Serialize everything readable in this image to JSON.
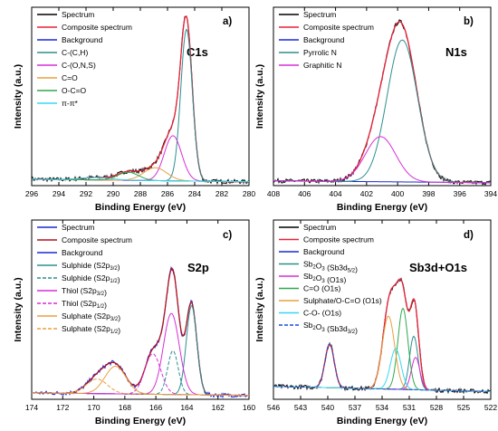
{
  "figure": {
    "panels": [
      {
        "letter": "a)",
        "element": "C1s",
        "xlabel": "Binding Energy (eV)",
        "ylabel": "Intensity (a.u.)"
      },
      {
        "letter": "b)",
        "element": "N1s",
        "xlabel": "Binding Energy (eV)",
        "ylabel": "Intensity (a.u.)"
      },
      {
        "letter": "c)",
        "element": "S2p",
        "xlabel": "Binding Energy (eV)",
        "ylabel": "Intensity (a.u.)"
      },
      {
        "letter": "d)",
        "element": "Sb3d+O1s",
        "xlabel": "Binding Energy (eV)",
        "ylabel": "Intensity (a.u.)"
      }
    ]
  },
  "chart_data": [
    {
      "type": "line",
      "title": "C1s",
      "panel_label": "a)",
      "xlabel": "Binding Energy (eV)",
      "ylabel": "Intensity (a.u.)",
      "xlim": [
        296,
        280
      ],
      "x_ticks": [
        296,
        294,
        292,
        290,
        288,
        286,
        284,
        282,
        280
      ],
      "ylim": [
        0,
        1.05
      ],
      "y_ticks_shown": false,
      "legend_position": "top-left",
      "components": [
        {
          "name": "Spectrum",
          "color": "#000000",
          "dash": "solid",
          "kind": "spectrum"
        },
        {
          "name": "Composite spectrum",
          "color": "#e8233a",
          "dash": "solid",
          "kind": "composite"
        },
        {
          "name": "Background",
          "color": "#1a2ad6",
          "dash": "solid",
          "kind": "background"
        },
        {
          "name": "C-(C,H)",
          "color": "#2e8f8f",
          "dash": "solid",
          "center": 284.6,
          "fwhm": 1.0,
          "height": 0.94
        },
        {
          "name": "C-(O,N,S)",
          "color": "#d62fd6",
          "dash": "solid",
          "center": 285.6,
          "fwhm": 1.5,
          "height": 0.28
        },
        {
          "name": "C=O",
          "color": "#e8a040",
          "dash": "solid",
          "center": 286.9,
          "fwhm": 2.0,
          "height": 0.08
        },
        {
          "name": "O-C=O",
          "color": "#2ea84f",
          "dash": "solid",
          "center": 288.9,
          "fwhm": 1.8,
          "height": 0.05
        },
        {
          "name": "π-π*",
          "color": "#38d8f0",
          "dash": "solid",
          "center": 291.2,
          "fwhm": 2.6,
          "height": 0.015
        }
      ],
      "background_level": 0.04
    },
    {
      "type": "line",
      "title": "N1s",
      "panel_label": "b)",
      "xlabel": "Binding Energy (eV)",
      "ylabel": "Intensity (a.u.)",
      "xlim": [
        408,
        394
      ],
      "x_ticks": [
        408,
        406,
        404,
        402,
        400,
        398,
        396,
        394
      ],
      "ylim": [
        0,
        1.05
      ],
      "y_ticks_shown": false,
      "legend_position": "top-left",
      "components": [
        {
          "name": "Spectrum",
          "color": "#000000",
          "dash": "solid",
          "kind": "spectrum"
        },
        {
          "name": "Composite spectrum",
          "color": "#e8233a",
          "dash": "solid",
          "kind": "composite"
        },
        {
          "name": "Background",
          "color": "#1a2ad6",
          "dash": "solid",
          "kind": "background"
        },
        {
          "name": "Pyrrolic N",
          "color": "#2e8f8f",
          "dash": "solid",
          "center": 399.7,
          "fwhm": 2.3,
          "height": 0.88
        },
        {
          "name": "Graphitic N",
          "color": "#d62fd6",
          "dash": "solid",
          "center": 401.1,
          "fwhm": 2.3,
          "height": 0.28
        }
      ],
      "background_level": 0.03
    },
    {
      "type": "line",
      "title": "S2p",
      "panel_label": "c)",
      "xlabel": "Binding Energy (eV)",
      "ylabel": "Intensity (a.u.)",
      "xlim": [
        174,
        160
      ],
      "x_ticks": [
        174,
        172,
        170,
        168,
        166,
        164,
        162,
        160
      ],
      "ylim": [
        0,
        1.05
      ],
      "y_ticks_shown": false,
      "legend_position": "top-left",
      "components": [
        {
          "name": "Spectrum",
          "color": "#1a2ad6",
          "dash": "solid",
          "kind": "spectrum"
        },
        {
          "name": "Composite spectrum",
          "color": "#b0121f",
          "dash": "solid",
          "kind": "composite"
        },
        {
          "name": "Background",
          "color": "#1a2ad6",
          "dash": "solid",
          "kind": "background"
        },
        {
          "name": "Sulphide (S2p3/2)",
          "color": "#2e8f8f",
          "dash": "solid",
          "center": 163.7,
          "fwhm": 0.8,
          "height": 0.55
        },
        {
          "name": "Sulphide (S2p1/2)",
          "color": "#2e8f8f",
          "dash": "dash",
          "center": 164.9,
          "fwhm": 0.8,
          "height": 0.27
        },
        {
          "name": "Thiol (S2p3/2)",
          "color": "#d62fd6",
          "dash": "solid",
          "center": 165.0,
          "fwhm": 1.2,
          "height": 0.5
        },
        {
          "name": "Thiol (S2p1/2)",
          "color": "#d62fd6",
          "dash": "dash",
          "center": 166.2,
          "fwhm": 1.2,
          "height": 0.25
        },
        {
          "name": "Sulphate (S2p3/2)",
          "color": "#e8a040",
          "dash": "solid",
          "center": 168.6,
          "fwhm": 1.6,
          "height": 0.17
        },
        {
          "name": "Sulphate (S2p1/2)",
          "color": "#e8a040",
          "dash": "dash",
          "center": 169.8,
          "fwhm": 1.6,
          "height": 0.09
        }
      ],
      "background_level": 0.04
    },
    {
      "type": "line",
      "title": "Sb3d+O1s",
      "panel_label": "d)",
      "xlabel": "Binding Energy (eV)",
      "ylabel": "Intensity (a.u.)",
      "xlim": [
        546,
        522
      ],
      "x_ticks": [
        546,
        543,
        540,
        537,
        534,
        531,
        528,
        525,
        522
      ],
      "ylim": [
        0,
        1.05
      ],
      "y_ticks_shown": false,
      "legend_position": "top-left",
      "components": [
        {
          "name": "Spectrum",
          "color": "#000000",
          "dash": "solid",
          "kind": "spectrum"
        },
        {
          "name": "Composite spectrum",
          "color": "#e8233a",
          "dash": "solid",
          "kind": "composite"
        },
        {
          "name": "Background",
          "color": "#1a2ad6",
          "dash": "solid",
          "kind": "background"
        },
        {
          "name": "Sb2O3 (Sb3d5/2)",
          "color": "#2e8f8f",
          "dash": "solid",
          "center": 530.5,
          "fwhm": 1.1,
          "height": 0.33
        },
        {
          "name": "Sb2O3 (O1s)",
          "color": "#d62fd6",
          "dash": "solid",
          "center": 530.3,
          "fwhm": 1.1,
          "height": 0.2
        },
        {
          "name": "C=O (O1s)",
          "color": "#2ea84f",
          "dash": "solid",
          "center": 531.7,
          "fwhm": 1.3,
          "height": 0.5
        },
        {
          "name": "Sulphate/O-C=O (O1s)",
          "color": "#e8a040",
          "dash": "solid",
          "center": 533.3,
          "fwhm": 1.6,
          "height": 0.45
        },
        {
          "name": "C-O- (O1s)",
          "color": "#38d8f0",
          "dash": "solid",
          "center": 532.5,
          "fwhm": 1.4,
          "height": 0.25
        },
        {
          "name": "Sb2O3 (Sb3d3/2)",
          "color": "#1a4fd6",
          "dash": "dash",
          "center": 539.8,
          "fwhm": 1.2,
          "height": 0.27
        }
      ],
      "background_level": 0.08
    }
  ],
  "legend_labels": [
    [
      {
        "base": "Spectrum"
      },
      {
        "base": "Composite spectrum"
      },
      {
        "base": "Background"
      },
      {
        "base": "C-(C,H)"
      },
      {
        "base": "C-(O,N,S)"
      },
      {
        "base": "C=O"
      },
      {
        "base": "O-C=O"
      },
      {
        "base": "π-π*"
      }
    ],
    [
      {
        "base": "Spectrum"
      },
      {
        "base": "Composite spectrum"
      },
      {
        "base": "Background"
      },
      {
        "base": "Pyrrolic N"
      },
      {
        "base": "Graphitic N"
      }
    ],
    [
      {
        "base": "Spectrum"
      },
      {
        "base": "Composite spectrum"
      },
      {
        "base": "Background"
      },
      {
        "base": "Sulphide (S2p",
        "sub": "3/2",
        "tail": ")"
      },
      {
        "base": "Sulphide (S2p",
        "sub": "1/2",
        "tail": ")"
      },
      {
        "base": "Thiol (S2p",
        "sub": "3/2",
        "tail": ")"
      },
      {
        "base": "Thiol (S2p",
        "sub": "1/2",
        "tail": ")"
      },
      {
        "base": "Sulphate (S2p",
        "sub": "3/2",
        "tail": ")"
      },
      {
        "base": "Sulphate (S2p",
        "sub": "1/2",
        "tail": ")"
      }
    ],
    [
      {
        "base": "Spectrum"
      },
      {
        "base": "Composite spectrum"
      },
      {
        "base": "Background"
      },
      {
        "base": "Sb",
        "sub": "2",
        "mid": "O",
        "sub2": "3",
        "tail": " (Sb3d",
        "sub3": "5/2",
        "tail2": ")"
      },
      {
        "base": "Sb",
        "sub": "2",
        "mid": "O",
        "sub2": "3",
        "tail": " (O1s)"
      },
      {
        "base": "C=O (O1s)"
      },
      {
        "base": "Sulphate/O-C=O (O1s)"
      },
      {
        "base": "C-O- (O1s)"
      },
      {
        "base": "Sb",
        "sub": "2",
        "mid": "O",
        "sub2": "3",
        "tail": " (Sb3d",
        "sub3": "3/2",
        "tail2": ")"
      }
    ]
  ]
}
